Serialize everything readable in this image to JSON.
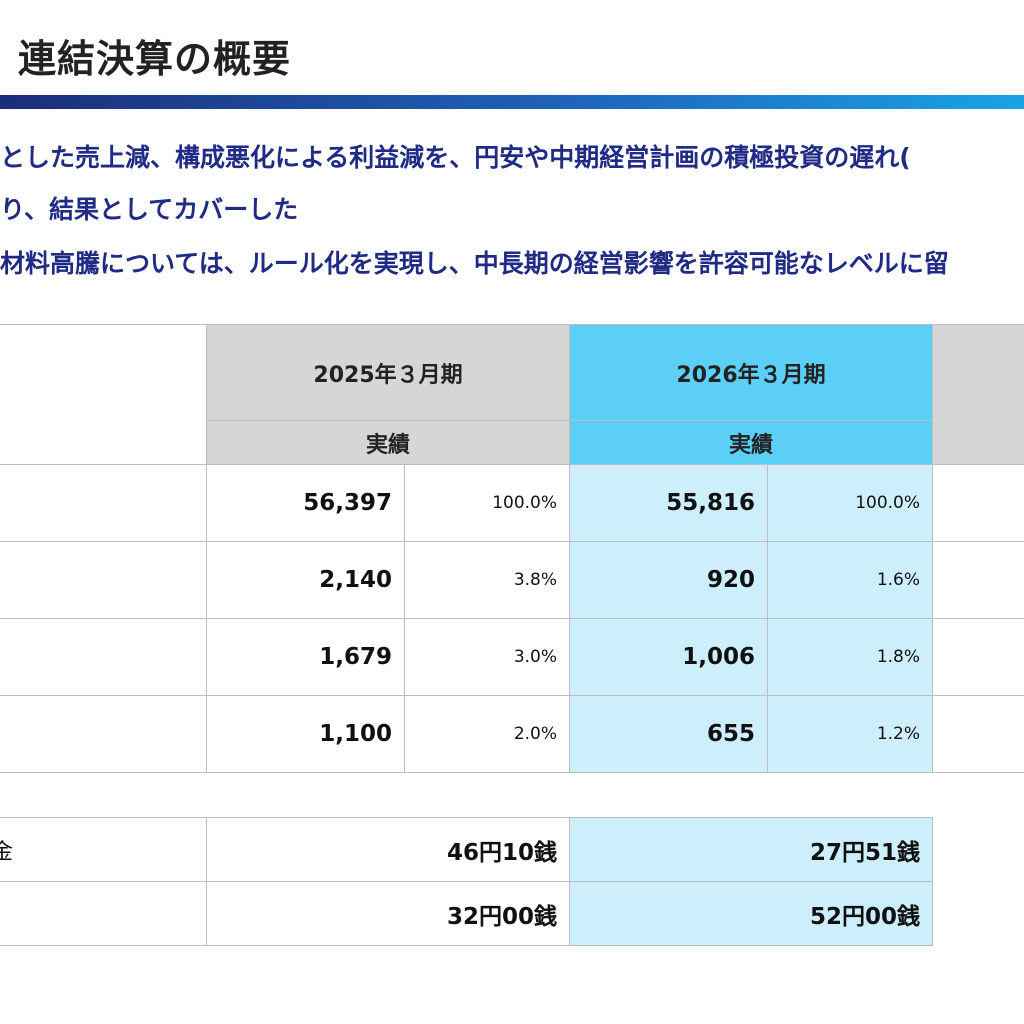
{
  "page": {
    "title": "連結決算の概要",
    "bullets": [
      "とした売上減、構成悪化による利益減を、円安や中期経営計画の積極投資の遅れ(",
      "り、結果としてカバーした",
      "材料高騰については、ルール化を実現し、中長期の経営影響を許容可能なレベルに留"
    ]
  },
  "main_table": {
    "periods": [
      {
        "label": "2025年３月期",
        "sub": "実績"
      },
      {
        "label": "2026年３月期",
        "sub": "実績"
      }
    ],
    "rows": [
      {
        "fy2025": "56,397",
        "fy2025_pct": "100.0%",
        "fy2026": "55,816",
        "fy2026_pct": "100.0%"
      },
      {
        "fy2025": "2,140",
        "fy2025_pct": "3.8%",
        "fy2026": "920",
        "fy2026_pct": "1.6%"
      },
      {
        "fy2025": "1,679",
        "fy2025_pct": "3.0%",
        "fy2026": "1,006",
        "fy2026_pct": "1.8%"
      },
      {
        "fy2025": "1,100",
        "fy2025_pct": "2.0%",
        "fy2026": "655",
        "fy2026_pct": "1.2%"
      }
    ]
  },
  "second_table": {
    "rows": [
      {
        "label": "金",
        "fy2025": "46円10銭",
        "fy2026": "27円51銭"
      },
      {
        "label": "",
        "fy2025": "32円00銭",
        "fy2026": "52円00銭"
      }
    ]
  },
  "colors": {
    "title_bar_start": "#1b2d7a",
    "title_bar_end": "#1aa3e4",
    "bullet_text": "#1f2b85",
    "header_gray": "#d6d6d6",
    "header_cyan": "#5ccff7",
    "cell_cyan": "#cdeefb"
  }
}
